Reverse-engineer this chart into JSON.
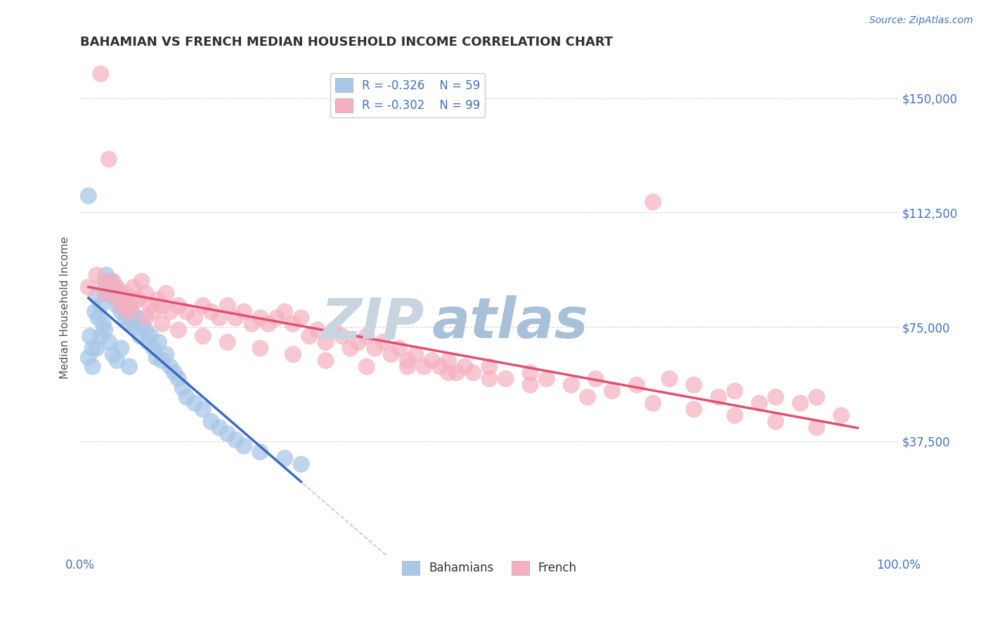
{
  "title": "BAHAMIAN VS FRENCH MEDIAN HOUSEHOLD INCOME CORRELATION CHART",
  "source_text": "Source: ZipAtlas.com",
  "ylabel": "Median Household Income",
  "xlim": [
    0,
    100
  ],
  "ylim": [
    0,
    162500
  ],
  "yticks": [
    0,
    37500,
    75000,
    112500,
    150000
  ],
  "ytick_labels": [
    "",
    "$37,500",
    "$75,000",
    "$112,500",
    "$150,000"
  ],
  "xtick_labels": [
    "0.0%",
    "100.0%"
  ],
  "legend_r1": "R = -0.326",
  "legend_n1": "N = 59",
  "legend_r2": "R = -0.302",
  "legend_n2": "N = 99",
  "color_bahamian": "#a8c8e8",
  "color_french": "#f5b0c0",
  "color_trendline_bahamian": "#3a6abf",
  "color_trendline_french": "#e05070",
  "color_dashed_diag": "#b8c8d8",
  "color_axis_blue": "#4472c4",
  "color_grid": "#d8d8d8",
  "color_title": "#303030",
  "watermark_zip": "ZIP",
  "watermark_atlas": "atlas",
  "watermark_color_zip": "#c8d4e0",
  "watermark_color_atlas": "#a8c0d8",
  "legend_bottom_bahamian": "Bahamians",
  "legend_bottom_french": "French",
  "bahamian_x": [
    1.0,
    1.2,
    1.5,
    1.8,
    2.0,
    2.2,
    2.5,
    2.8,
    3.0,
    3.2,
    3.5,
    3.8,
    4.0,
    4.2,
    4.5,
    4.8,
    5.0,
    5.2,
    5.5,
    5.8,
    6.0,
    6.3,
    6.6,
    7.0,
    7.3,
    7.6,
    8.0,
    8.3,
    8.6,
    9.0,
    9.3,
    9.6,
    10.0,
    10.5,
    11.0,
    11.5,
    12.0,
    12.5,
    13.0,
    14.0,
    15.0,
    16.0,
    17.0,
    18.0,
    19.0,
    20.0,
    22.0,
    25.0,
    27.0,
    1.0,
    1.5,
    2.0,
    2.5,
    3.0,
    3.5,
    4.0,
    4.5,
    5.0,
    6.0
  ],
  "bahamian_y": [
    118000,
    72000,
    68000,
    80000,
    85000,
    78000,
    82000,
    76000,
    88000,
    92000,
    86000,
    90000,
    85000,
    88000,
    82000,
    86000,
    80000,
    84000,
    78000,
    82000,
    76000,
    80000,
    75000,
    78000,
    72000,
    76000,
    74000,
    70000,
    72000,
    68000,
    65000,
    70000,
    64000,
    66000,
    62000,
    60000,
    58000,
    55000,
    52000,
    50000,
    48000,
    44000,
    42000,
    40000,
    38000,
    36000,
    34000,
    32000,
    30000,
    65000,
    62000,
    68000,
    72000,
    74000,
    70000,
    66000,
    64000,
    68000,
    62000
  ],
  "french_x": [
    1.0,
    2.0,
    2.5,
    3.0,
    3.5,
    4.0,
    4.5,
    5.0,
    5.5,
    6.0,
    6.5,
    7.0,
    7.5,
    8.0,
    8.5,
    9.0,
    9.5,
    10.0,
    10.5,
    11.0,
    12.0,
    13.0,
    14.0,
    15.0,
    16.0,
    17.0,
    18.0,
    19.0,
    20.0,
    21.0,
    22.0,
    23.0,
    24.0,
    25.0,
    26.0,
    27.0,
    28.0,
    29.0,
    30.0,
    31.0,
    32.0,
    33.0,
    34.0,
    35.0,
    36.0,
    37.0,
    38.0,
    39.0,
    40.0,
    41.0,
    42.0,
    43.0,
    44.0,
    45.0,
    46.0,
    47.0,
    48.0,
    50.0,
    52.0,
    55.0,
    57.0,
    60.0,
    63.0,
    65.0,
    68.0,
    70.0,
    72.0,
    75.0,
    78.0,
    80.0,
    83.0,
    85.0,
    88.0,
    90.0,
    93.0,
    3.0,
    4.0,
    5.0,
    6.0,
    7.0,
    8.0,
    10.0,
    12.0,
    15.0,
    18.0,
    22.0,
    26.0,
    30.0,
    35.0,
    40.0,
    45.0,
    50.0,
    55.0,
    62.0,
    70.0,
    75.0,
    80.0,
    85.0,
    90.0
  ],
  "french_y": [
    88000,
    92000,
    158000,
    86000,
    130000,
    90000,
    88000,
    84000,
    86000,
    82000,
    88000,
    84000,
    90000,
    86000,
    82000,
    80000,
    84000,
    82000,
    86000,
    80000,
    82000,
    80000,
    78000,
    82000,
    80000,
    78000,
    82000,
    78000,
    80000,
    76000,
    78000,
    76000,
    78000,
    80000,
    76000,
    78000,
    72000,
    74000,
    70000,
    74000,
    72000,
    68000,
    70000,
    72000,
    68000,
    70000,
    66000,
    68000,
    64000,
    66000,
    62000,
    64000,
    62000,
    64000,
    60000,
    62000,
    60000,
    62000,
    58000,
    60000,
    58000,
    56000,
    58000,
    54000,
    56000,
    116000,
    58000,
    56000,
    52000,
    54000,
    50000,
    52000,
    50000,
    52000,
    46000,
    90000,
    86000,
    82000,
    80000,
    84000,
    78000,
    76000,
    74000,
    72000,
    70000,
    68000,
    66000,
    64000,
    62000,
    62000,
    60000,
    58000,
    56000,
    52000,
    50000,
    48000,
    46000,
    44000,
    42000
  ]
}
